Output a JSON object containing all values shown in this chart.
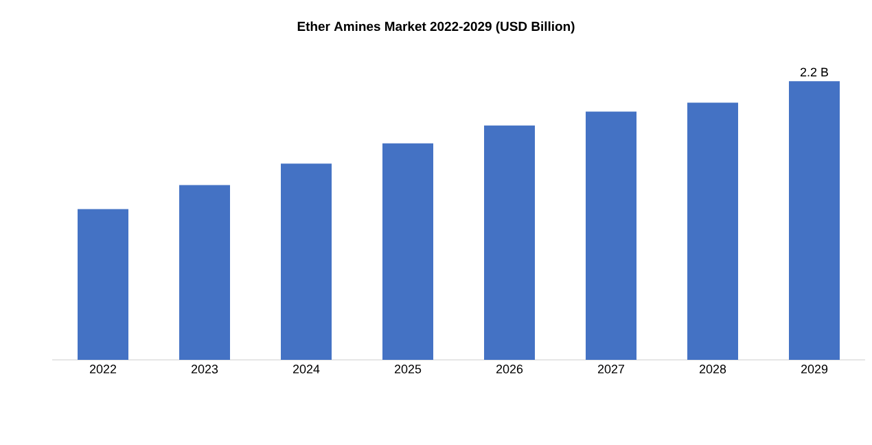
{
  "chart_data": {
    "type": "bar",
    "title": "Ether Amines Market 2022-2029 (USD Billion)",
    "categories": [
      "2022",
      "2023",
      "2024",
      "2025",
      "2026",
      "2027",
      "2028",
      "2029"
    ],
    "values": [
      1.19,
      1.38,
      1.55,
      1.71,
      1.85,
      1.96,
      2.03,
      2.2
    ],
    "value_labels": [
      null,
      null,
      null,
      null,
      null,
      null,
      null,
      "2.2 B"
    ],
    "color": "#4472c4",
    "tick_labels": "x"
  }
}
